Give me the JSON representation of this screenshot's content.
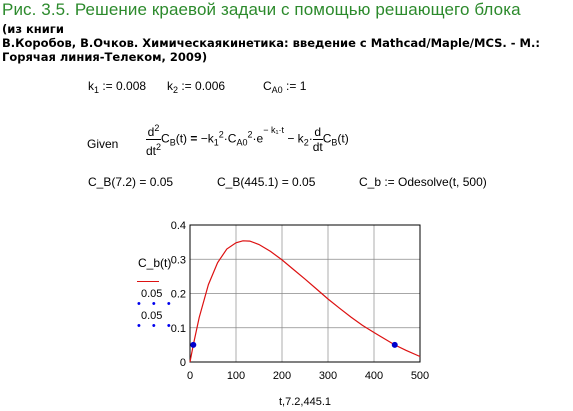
{
  "title": "Рис. 3.5. Решение краевой задачи с помощью решающего блока",
  "book_lines": [
    "(из книги",
    "В.Коробов, В.Очков. Химическаякинетика: введение с Mathcad/Maple/MCS. - М.:",
    "Горячая линия-Телеком, 2009)"
  ],
  "constants": {
    "k1_value": "0.008",
    "k2_value": "0.006",
    "ca0_value": "1"
  },
  "equation": {
    "given": "Given",
    "operator": "=",
    "minus": "−",
    "times": "·",
    "exp_e": "e",
    "exp_power": "− k₁·t"
  },
  "conditions": {
    "cb_left": "C_B(7.2) = 0.05",
    "cb_right": "C_B(445.1) = 0.05",
    "odesolve": "C_b := Odesolve(t, 500)"
  },
  "chart_ylabel": "C_b(t)",
  "trace_values": [
    "0.05",
    "0.05"
  ],
  "trace_markers": [
    "• • •",
    "• • •"
  ],
  "chart_data": {
    "type": "line",
    "x_axis_label": "t,7.2,445.1",
    "xlim": [
      0,
      500
    ],
    "ylim": [
      0,
      0.4
    ],
    "x_ticks": [
      "0",
      "100",
      "200",
      "300",
      "400",
      "500"
    ],
    "y_ticks": [
      "0",
      "0.1",
      "0.2",
      "0.3",
      "0.4"
    ],
    "grid": true,
    "series": [
      {
        "color": "#dd1111",
        "x": [
          0,
          7.2,
          20,
          40,
          60,
          80,
          100,
          115,
          130,
          150,
          175,
          200,
          225,
          250,
          275,
          300,
          325,
          350,
          375,
          400,
          425,
          445.1,
          470,
          500
        ],
        "y": [
          0.0,
          0.05,
          0.13,
          0.226,
          0.29,
          0.33,
          0.348,
          0.354,
          0.353,
          0.343,
          0.323,
          0.298,
          0.27,
          0.242,
          0.213,
          0.184,
          0.157,
          0.131,
          0.107,
          0.086,
          0.066,
          0.05,
          0.034,
          0.016
        ]
      }
    ],
    "points": [
      {
        "x": 7.2,
        "y": 0.05,
        "color": "#0000cc"
      },
      {
        "x": 445.1,
        "y": 0.05,
        "color": "#0000cc"
      }
    ]
  }
}
